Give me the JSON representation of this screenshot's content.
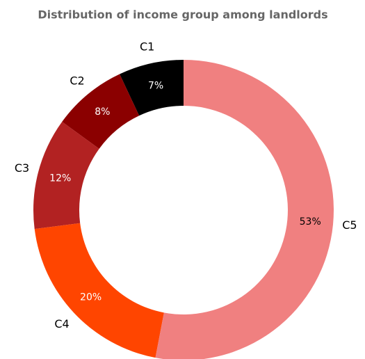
{
  "chart_data": {
    "type": "donut",
    "title": "Distribution of income group among landlords",
    "categories": [
      "C1",
      "C2",
      "C3",
      "C4",
      "C5"
    ],
    "values": [
      7,
      8,
      12,
      20,
      53
    ],
    "value_labels": [
      "7%",
      "8%",
      "12%",
      "20%",
      "53%"
    ],
    "colors": [
      "#000000",
      "#8b0000",
      "#b22222",
      "#ff4500",
      "#f08080"
    ],
    "label_colors": [
      "#ffffff",
      "#ffffff",
      "#ffffff",
      "#ffffff",
      "#000000"
    ]
  }
}
